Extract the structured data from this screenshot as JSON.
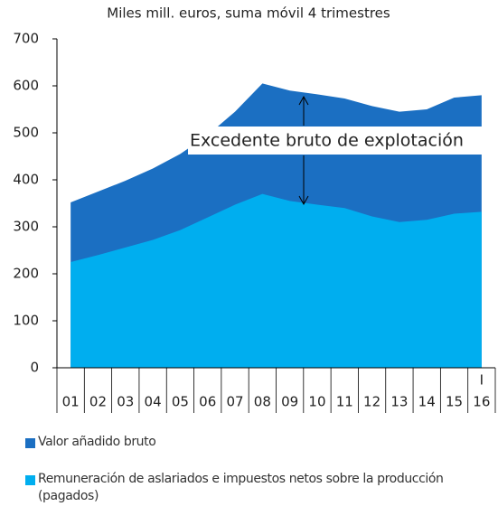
{
  "chart_data": {
    "type": "area",
    "title": "Miles mill. euros, suma móvil 4 trimestres",
    "categories": [
      "01",
      "02",
      "03",
      "04",
      "05",
      "06",
      "07",
      "08",
      "09",
      "10",
      "11",
      "12",
      "13",
      "14",
      "15",
      "16"
    ],
    "x_note": "I",
    "series": [
      {
        "name": "Valor añadido bruto",
        "color": "#1b6fc2",
        "values": [
          352,
          375,
          398,
          424,
          455,
          495,
          545,
          605,
          590,
          582,
          573,
          557,
          545,
          550,
          575,
          580
        ]
      },
      {
        "name": "Remuneración de aslariados e impuestos netos sobre la producción (pagados)",
        "color": "#00aeef",
        "values": [
          225,
          240,
          256,
          272,
          293,
          320,
          347,
          370,
          355,
          347,
          340,
          322,
          310,
          315,
          328,
          332
        ]
      }
    ],
    "annotation": "Excedente bruto de explotación",
    "ylim": [
      0,
      700
    ],
    "yticks": [
      0,
      100,
      200,
      300,
      400,
      500,
      600,
      700
    ],
    "grid": false
  }
}
